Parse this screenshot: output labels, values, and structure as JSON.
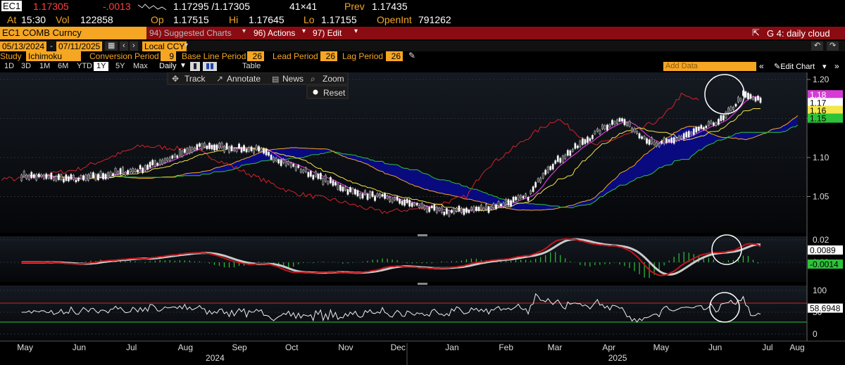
{
  "quote": {
    "ticker": "EC1",
    "last": "1.17305",
    "change": "-.0013",
    "bid_ask": "1.17295 /1.17305",
    "size": "41×41",
    "prev_label": "Prev",
    "prev": "1.17435",
    "at_label": "At",
    "time": "15:30",
    "vol_label": "Vol",
    "vol": "122858",
    "op_label": "Op",
    "open": "1.17515",
    "hi_label": "Hi",
    "high": "1.17645",
    "lo_label": "Lo",
    "low": "1.17155",
    "oi_label": "OpenInt",
    "open_interest": "791262"
  },
  "toolbar": {
    "security": "EC1 COMB Curncy",
    "suggested": "94) Suggested Charts",
    "actions": "96) Actions",
    "edit": "97) Edit",
    "chart_title": "G 4: daily cloud"
  },
  "dates": {
    "start": "05/13/2024",
    "end": "07/11/2025",
    "currency": "Local CCY"
  },
  "study": {
    "label": "Study",
    "name": "Ichimoku",
    "conv_label": "Conversion Period",
    "conv": "9",
    "base_label": "Base Line Period",
    "base": "26",
    "lead_label": "Lead Period",
    "lead": "26",
    "lag_label": "Lag Period",
    "lag": "26"
  },
  "periods": [
    "1D",
    "3D",
    "1M",
    "6M",
    "YTD",
    "1Y",
    "5Y",
    "Max"
  ],
  "selected_period": "1Y",
  "freq": "Daily",
  "table_label": "Table",
  "add_data": "Add Data",
  "edit_chart": "Edit Chart",
  "overlay": {
    "track": "Track",
    "annotate": "Annotate",
    "news": "News",
    "zoom": "Zoom",
    "reset": "Reset"
  },
  "price_axis": [
    "1.20",
    "1.15",
    "1.10",
    "1.05"
  ],
  "price_tags": [
    {
      "v": "1.18",
      "bg": "#d63bd6",
      "fg": "#fff"
    },
    {
      "v": "1.17",
      "bg": "#ffffff",
      "fg": "#000"
    },
    {
      "v": "1.16",
      "bg": "#f2e64a",
      "fg": "#000"
    },
    {
      "v": "1.15",
      "bg": "#2ec23a",
      "fg": "#000"
    }
  ],
  "macd_axis": [
    "0.02",
    "0.00"
  ],
  "macd_tags": [
    {
      "v": "0.0089",
      "bg": "#ffffff",
      "fg": "#000"
    },
    {
      "v": "-0.0014",
      "bg": "#2ec23a",
      "fg": "#000"
    }
  ],
  "rsi_axis": [
    "100",
    "50",
    "0"
  ],
  "rsi_tag": {
    "v": "58.6948",
    "bg": "#ffffff",
    "fg": "#000"
  },
  "x_months": [
    "May",
    "Jun",
    "Jul",
    "Aug",
    "Sep",
    "Oct",
    "Nov",
    "Dec",
    "Jan",
    "Feb",
    "Mar",
    "Apr",
    "May",
    "Jun",
    "Jul",
    "Aug"
  ],
  "x_years": [
    "2024",
    "2025"
  ],
  "colors": {
    "conversion": "#d63bd6",
    "base": "#f2e64a",
    "lag": "#d2232a",
    "cloud": "#0a0a8c",
    "span_a": "#f5a623",
    "span_b": "#2ec23a"
  },
  "chart_data": {
    "type": "line",
    "title": "G 4: daily cloud",
    "price_anchors": {
      "x": [
        "2024-05-13",
        "2024-06-15",
        "2024-07-20",
        "2024-08-25",
        "2024-09-25",
        "2024-10-25",
        "2024-11-20",
        "2024-12-15",
        "2025-01-10",
        "2025-02-03",
        "2025-02-28",
        "2025-03-10",
        "2025-04-10",
        "2025-04-21",
        "2025-05-12",
        "2025-06-01",
        "2025-06-20",
        "2025-07-01",
        "2025-07-11"
      ],
      "y": [
        1.077,
        1.072,
        1.085,
        1.115,
        1.11,
        1.08,
        1.055,
        1.045,
        1.03,
        1.035,
        1.05,
        1.085,
        1.135,
        1.15,
        1.115,
        1.13,
        1.15,
        1.18,
        1.173
      ]
    },
    "ylim": [
      1.0,
      1.22
    ],
    "rsi_levels": [
      70,
      30
    ],
    "rsi_last": 58.6948,
    "macd_last": 0.0089,
    "macd_hist_last": -0.0014
  }
}
